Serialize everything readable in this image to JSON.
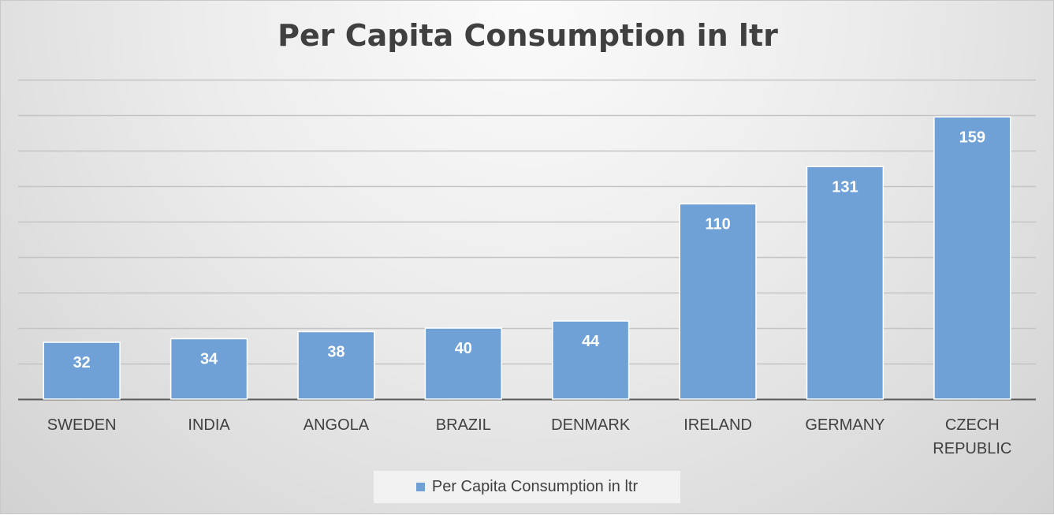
{
  "chart_data": {
    "type": "bar",
    "title": "Per Capita Consumption in ltr",
    "xlabel": "",
    "ylabel": "",
    "categories": [
      [
        "SWEDEN"
      ],
      [
        "INDIA"
      ],
      [
        "ANGOLA"
      ],
      [
        "BRAZIL"
      ],
      [
        "DENMARK"
      ],
      [
        "IRELAND"
      ],
      [
        "GERMANY"
      ],
      [
        "CZECH",
        "REPUBLIC"
      ]
    ],
    "series": [
      {
        "name": "Per Capita Consumption in ltr",
        "values": [
          32,
          34,
          38,
          40,
          44,
          110,
          131,
          159
        ],
        "color": "#6fa0d6",
        "data_labels": true
      }
    ],
    "ylim": [
      0,
      180
    ],
    "y_grid_step": 20,
    "grid": true,
    "y_tick_labels_shown": false,
    "legend": "bottom"
  }
}
